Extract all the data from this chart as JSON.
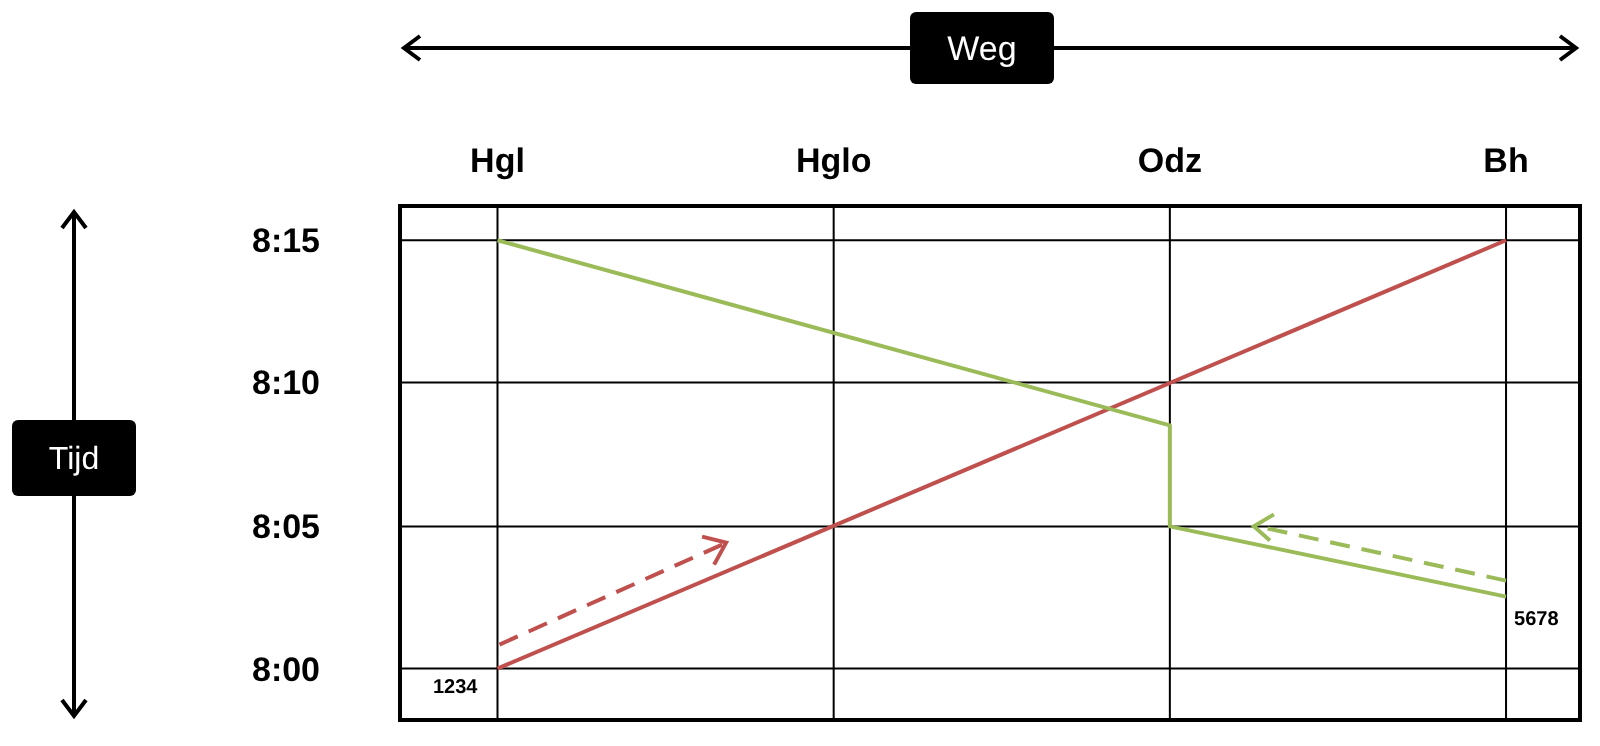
{
  "chart_data": {
    "type": "line",
    "xlabel": "Weg",
    "ylabel": "Tijd",
    "categories": [
      "Hgl",
      "Hglo",
      "Odz",
      "Bh"
    ],
    "ylim": [
      7.97,
      8.27
    ],
    "yticks": [
      {
        "value": 8,
        "label": "8:00"
      },
      {
        "value": 8.083,
        "label": "8:05"
      },
      {
        "value": 8.167,
        "label": "8:10"
      },
      {
        "value": 8.25,
        "label": "8:15"
      }
    ],
    "series": [
      {
        "color": "#c0504d",
        "x": [
          "Hgl",
          "Bh"
        ],
        "values": [
          8,
          8.25
        ]
      },
      {
        "color": "#9bbb59",
        "x": [
          "Bh",
          "Odz",
          "Odz",
          "Hgl"
        ],
        "values": [
          8.042,
          8.083,
          8.142,
          8.25
        ]
      }
    ],
    "annotations": [
      {
        "text": "1234",
        "x": "Hgl",
        "y": 8
      },
      {
        "text": "5678",
        "x": "Bh",
        "y": 8.042
      }
    ],
    "grid": true,
    "marker": "none",
    "line_style": "solid"
  }
}
